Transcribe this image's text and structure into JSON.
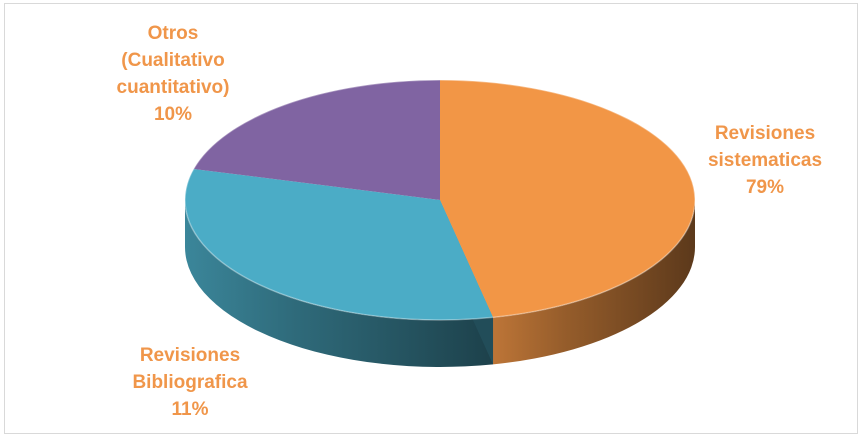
{
  "chart_data": {
    "type": "pie",
    "title": "",
    "categories": [
      "Revisiones sistematicas",
      "Revisiones Bibliografica",
      "Otros (Cualitativo cuantitativo)"
    ],
    "values": [
      79,
      11,
      10
    ],
    "labels": [
      {
        "lines": [
          "Revisiones",
          "sistematicas"
        ],
        "pct": "79%"
      },
      {
        "lines": [
          "Revisiones",
          "Bibliografica"
        ],
        "pct": "11%"
      },
      {
        "lines": [
          "Otros",
          "(Cualitativo",
          "cuantitativo)"
        ],
        "pct": "10%"
      }
    ],
    "colors": [
      "#f29646",
      "#4bacc6",
      "#8064a2"
    ],
    "label_color": "#f0964a",
    "style": "3d-pie"
  }
}
